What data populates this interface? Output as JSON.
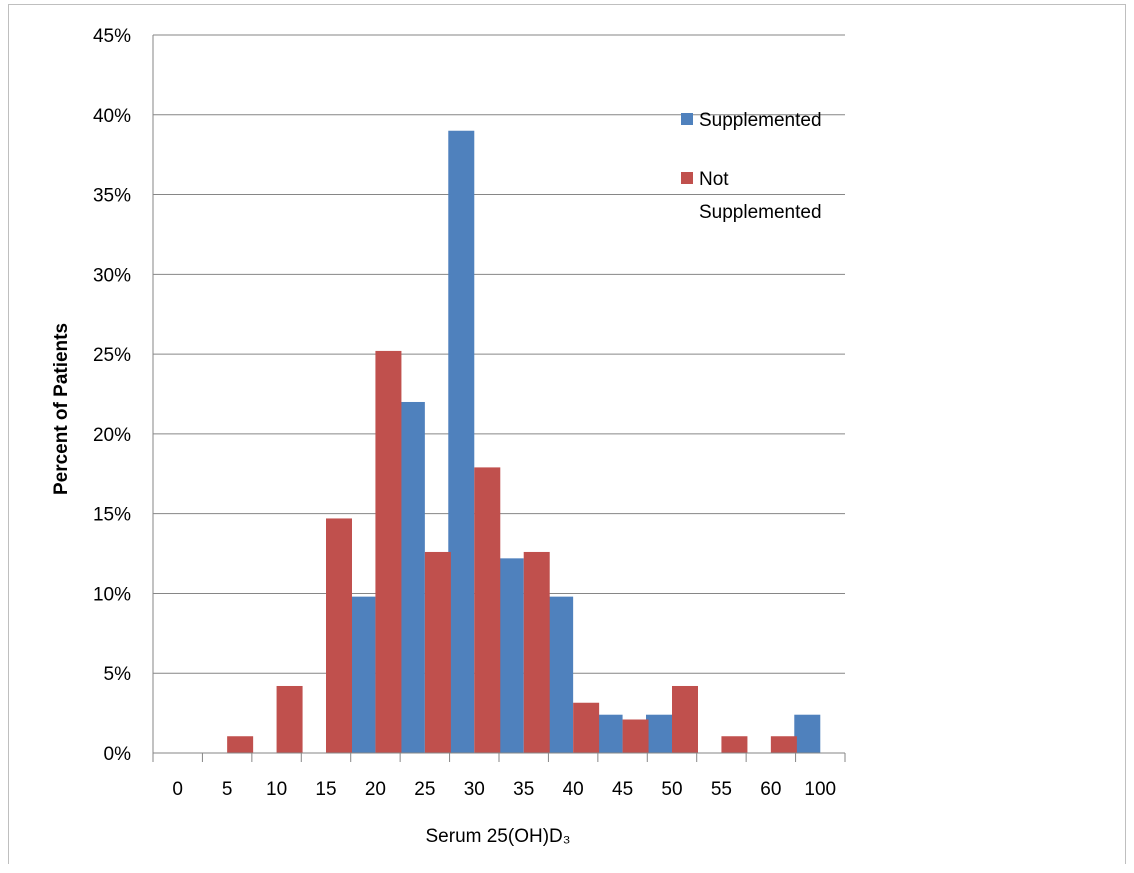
{
  "chart_data": {
    "type": "bar",
    "categories": [
      "0",
      "5",
      "10",
      "15",
      "20",
      "25",
      "30",
      "35",
      "40",
      "45",
      "50",
      "55",
      "60",
      "100"
    ],
    "series": [
      {
        "name": "Supplemented",
        "color": "#4F81BD",
        "values": [
          0,
          0,
          0,
          0,
          9.8,
          22.0,
          39.0,
          12.2,
          9.8,
          2.4,
          2.4,
          0,
          0,
          2.4
        ]
      },
      {
        "name": "Not Supplemented",
        "color": "#C0504D",
        "values": [
          0,
          1.05,
          4.2,
          14.7,
          25.2,
          12.6,
          17.9,
          12.6,
          3.15,
          2.1,
          4.2,
          1.05,
          1.05,
          0
        ]
      }
    ],
    "xlabel": "Serum 25(OH)D₃",
    "ylabel": "Percent of Patients",
    "ylim": [
      0,
      45
    ],
    "yticks": [
      "0%",
      "5%",
      "10%",
      "15%",
      "20%",
      "25%",
      "30%",
      "35%",
      "40%",
      "45%"
    ],
    "grid": true,
    "legend_position": "top-right",
    "legend_lines": [
      [
        "Supplemented"
      ],
      [
        "Not",
        "Supplemented"
      ]
    ]
  }
}
